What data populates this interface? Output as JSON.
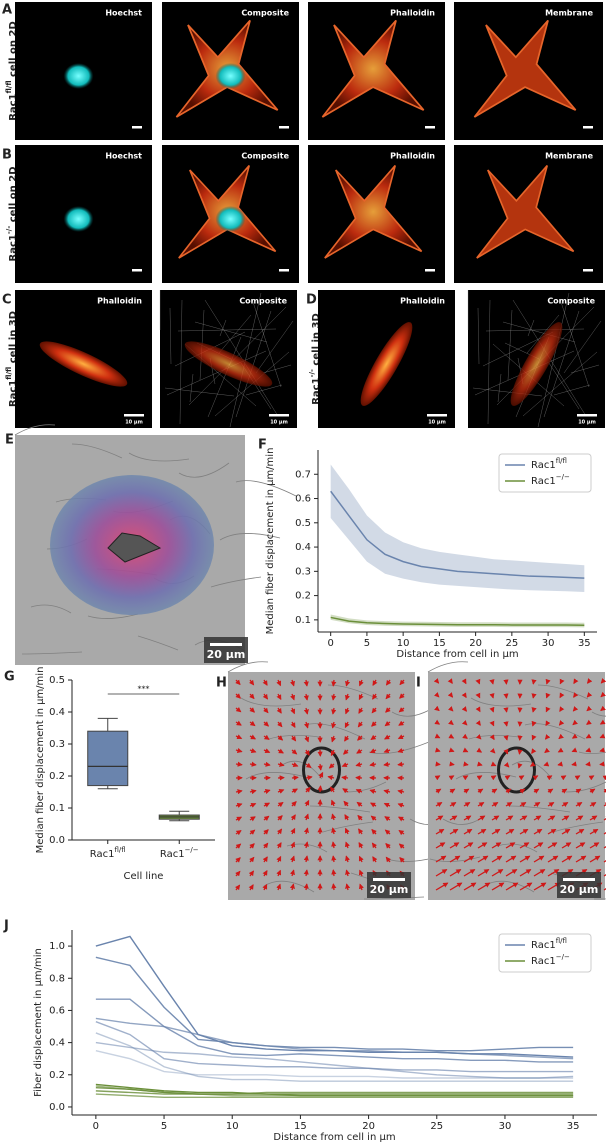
{
  "panels": [
    {
      "letter": "A",
      "row_label": "Rac1fl/fl cell on 2D",
      "images": [
        "Hoechst",
        "Composite",
        "Phalloidin",
        "Membrane"
      ]
    },
    {
      "letter": "B",
      "row_label": "Rac1-/- cell on 2D",
      "images": [
        "Hoechst",
        "Composite",
        "Phalloidin",
        "Membrane"
      ]
    },
    {
      "letter": "C",
      "row_label": "Rac1fl/fl cell in 3D",
      "images": [
        "Phalloidin",
        "Composite"
      ],
      "scale_bar": "10 µm"
    },
    {
      "letter": "D",
      "row_label": "Rac1-/- cell in 3D",
      "images": [
        "Phalloidin",
        "Composite"
      ],
      "scale_bar": "10 µm"
    },
    {
      "letter": "E",
      "scale_bar": "20 µm"
    },
    {
      "letter": "H",
      "scale_bar": "20 µm"
    },
    {
      "letter": "I",
      "scale_bar": "20 µm"
    }
  ],
  "chart_data": [
    {
      "panel": "F",
      "type": "line",
      "xlabel": "Distance from cell in µm",
      "ylabel": "Median fiber displacement in µm/min",
      "x": [
        0,
        2.5,
        5,
        7.5,
        10,
        12.5,
        15,
        17.5,
        20,
        22.5,
        25,
        27.5,
        30,
        32.5,
        35
      ],
      "series": [
        {
          "name": "Rac1fl/fl",
          "color": "#6a84ad",
          "values": [
            0.63,
            0.53,
            0.43,
            0.37,
            0.34,
            0.32,
            0.31,
            0.3,
            0.295,
            0.29,
            0.285,
            0.28,
            0.278,
            0.275,
            0.272
          ],
          "band_lower": [
            0.52,
            0.43,
            0.34,
            0.29,
            0.27,
            0.255,
            0.245,
            0.24,
            0.235,
            0.23,
            0.225,
            0.222,
            0.22,
            0.218,
            0.215
          ],
          "band_upper": [
            0.74,
            0.64,
            0.53,
            0.46,
            0.42,
            0.395,
            0.38,
            0.37,
            0.36,
            0.35,
            0.345,
            0.34,
            0.335,
            0.33,
            0.325
          ]
        },
        {
          "name": "Rac1−/−",
          "color": "#6b8f3a",
          "values": [
            0.11,
            0.095,
            0.088,
            0.085,
            0.083,
            0.082,
            0.081,
            0.08,
            0.08,
            0.08,
            0.079,
            0.079,
            0.079,
            0.079,
            0.078
          ],
          "band_lower": [
            0.1,
            0.086,
            0.079,
            0.076,
            0.074,
            0.073,
            0.072,
            0.071,
            0.071,
            0.071,
            0.07,
            0.07,
            0.07,
            0.07,
            0.069
          ],
          "band_upper": [
            0.122,
            0.106,
            0.098,
            0.095,
            0.093,
            0.092,
            0.091,
            0.09,
            0.09,
            0.09,
            0.089,
            0.089,
            0.089,
            0.089,
            0.088
          ]
        }
      ],
      "xlim": [
        -1.75,
        36.75
      ],
      "ylim": [
        0.05,
        0.8
      ],
      "xticks": [
        0,
        5,
        10,
        15,
        20,
        25,
        30,
        35
      ],
      "yticks": [
        0.1,
        0.2,
        0.3,
        0.4,
        0.5,
        0.6,
        0.7
      ],
      "legend": "upper right"
    },
    {
      "panel": "G",
      "type": "box",
      "xlabel": "Cell line",
      "ylabel": "Median fiber displacement in µm/min",
      "categories": [
        "Rac1fl/fl",
        "Rac1−/−"
      ],
      "boxes": [
        {
          "color": "#6a84ad",
          "min": 0.16,
          "q1": 0.17,
          "median": 0.23,
          "q3": 0.34,
          "max": 0.38
        },
        {
          "color": "#6b8f3a",
          "min": 0.06,
          "q1": 0.065,
          "median": 0.072,
          "q3": 0.078,
          "max": 0.09
        }
      ],
      "annotation": "***",
      "ylim": [
        0,
        0.5
      ],
      "yticks": [
        {
          "value": 0,
          "label": "0.0"
        },
        0.1,
        0.2,
        0.3,
        0.4,
        0.5
      ]
    },
    {
      "panel": "J",
      "type": "multiline",
      "xlabel": "Distance from cell in µm",
      "ylabel": "Fiber displacement in µm/min",
      "x": [
        0,
        2.5,
        5,
        7.5,
        10,
        12.5,
        15,
        17.5,
        20,
        22.5,
        25,
        27.5,
        30,
        32.5,
        35
      ],
      "series": [
        {
          "name": "Rac1fl/fl",
          "color": "#6a84ad",
          "lines": [
            [
              1.0,
              1.06,
              0.75,
              0.45,
              0.38,
              0.36,
              0.35,
              0.35,
              0.34,
              0.34,
              0.34,
              0.33,
              0.33,
              0.32,
              0.31
            ],
            [
              0.93,
              0.88,
              0.62,
              0.42,
              0.4,
              0.38,
              0.37,
              0.37,
              0.36,
              0.36,
              0.35,
              0.35,
              0.36,
              0.37,
              0.37
            ],
            [
              0.67,
              0.67,
              0.5,
              0.38,
              0.33,
              0.32,
              0.33,
              0.32,
              0.31,
              0.3,
              0.3,
              0.29,
              0.29,
              0.28,
              0.28
            ],
            [
              0.55,
              0.52,
              0.5,
              0.45,
              0.4,
              0.38,
              0.36,
              0.35,
              0.35,
              0.34,
              0.34,
              0.33,
              0.32,
              0.31,
              0.3
            ],
            [
              0.53,
              0.45,
              0.3,
              0.27,
              0.26,
              0.25,
              0.25,
              0.24,
              0.24,
              0.23,
              0.23,
              0.22,
              0.22,
              0.22,
              0.22
            ],
            [
              0.4,
              0.37,
              0.34,
              0.33,
              0.31,
              0.3,
              0.28,
              0.26,
              0.24,
              0.22,
              0.2,
              0.19,
              0.18,
              0.18,
              0.19
            ],
            [
              0.46,
              0.38,
              0.25,
              0.19,
              0.17,
              0.17,
              0.16,
              0.16,
              0.16,
              0.16,
              0.16,
              0.16,
              0.16,
              0.16,
              0.16
            ],
            [
              0.35,
              0.3,
              0.22,
              0.2,
              0.2,
              0.2,
              0.19,
              0.19,
              0.19,
              0.18,
              0.18,
              0.18,
              0.18,
              0.18,
              0.18
            ]
          ]
        },
        {
          "name": "Rac1−/−",
          "color": "#6b8f3a",
          "lines": [
            [
              0.14,
              0.12,
              0.1,
              0.09,
              0.09,
              0.08,
              0.08,
              0.08,
              0.08,
              0.08,
              0.08,
              0.08,
              0.08,
              0.08,
              0.08
            ],
            [
              0.12,
              0.11,
              0.09,
              0.08,
              0.08,
              0.08,
              0.07,
              0.07,
              0.07,
              0.07,
              0.07,
              0.07,
              0.07,
              0.07,
              0.07
            ],
            [
              0.1,
              0.09,
              0.08,
              0.08,
              0.08,
              0.09,
              0.09,
              0.09,
              0.09,
              0.09,
              0.09,
              0.09,
              0.09,
              0.09,
              0.09
            ],
            [
              0.08,
              0.07,
              0.06,
              0.06,
              0.06,
              0.06,
              0.06,
              0.06,
              0.06,
              0.06,
              0.06,
              0.06,
              0.06,
              0.06,
              0.06
            ],
            [
              0.13,
              0.11,
              0.09,
              0.08,
              0.07,
              0.07,
              0.07,
              0.07,
              0.07,
              0.07,
              0.07,
              0.07,
              0.07,
              0.07,
              0.07
            ]
          ]
        }
      ],
      "xlim": [
        -1.75,
        36.75
      ],
      "ylim": [
        -0.05,
        1.1
      ],
      "xticks": [
        0,
        5,
        10,
        15,
        20,
        25,
        30,
        35
      ],
      "yticks": [
        {
          "value": 0,
          "label": "0.0"
        },
        0.2,
        0.4,
        0.6,
        0.8,
        {
          "value": 1,
          "label": "1.0"
        }
      ],
      "legend": "upper right"
    }
  ]
}
